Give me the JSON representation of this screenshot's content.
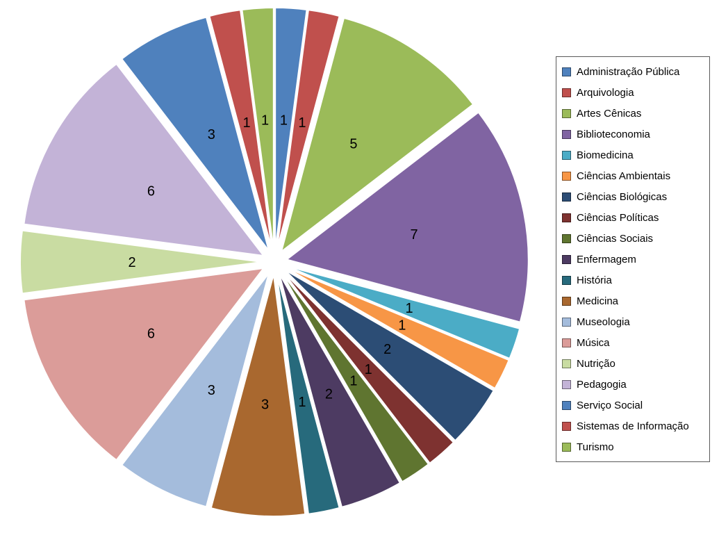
{
  "chart_data": {
    "type": "pie",
    "title": "",
    "categories": [
      "Administração Pública",
      "Arquivologia",
      "Artes Cênicas",
      "Biblioteconomia",
      "Biomedicina",
      "Ciências Ambientais",
      "Ciências Biológicas",
      "Ciências Políticas",
      "Ciências Sociais",
      "Enfermagem",
      "História",
      "Medicina",
      "Museologia",
      "Música",
      "Nutrição",
      "Pedagogia",
      "Serviço Social",
      "Sistemas de Informação",
      "Turismo"
    ],
    "values": [
      1,
      1,
      5,
      7,
      1,
      1,
      2,
      1,
      1,
      2,
      1,
      3,
      3,
      6,
      2,
      6,
      3,
      1,
      1
    ],
    "colors": [
      "#4F81BD",
      "#C0504D",
      "#9BBB59",
      "#8064A2",
      "#4BACC6",
      "#F79646",
      "#2C4D75",
      "#7E3230",
      "#5F7530",
      "#4D3B62",
      "#276A7C",
      "#A9682F",
      "#A4BCDC",
      "#DB9C99",
      "#C9DCA2",
      "#C3B3D7",
      "#4F81BD",
      "#C0504D",
      "#9BBB59"
    ],
    "total": 48,
    "start_angle_deg": 0,
    "direction": "clockwise",
    "exploded": true,
    "data_labels": "values",
    "legend_position": "right",
    "background_color": "#FFFFFF",
    "label_text_color": "#000000"
  }
}
